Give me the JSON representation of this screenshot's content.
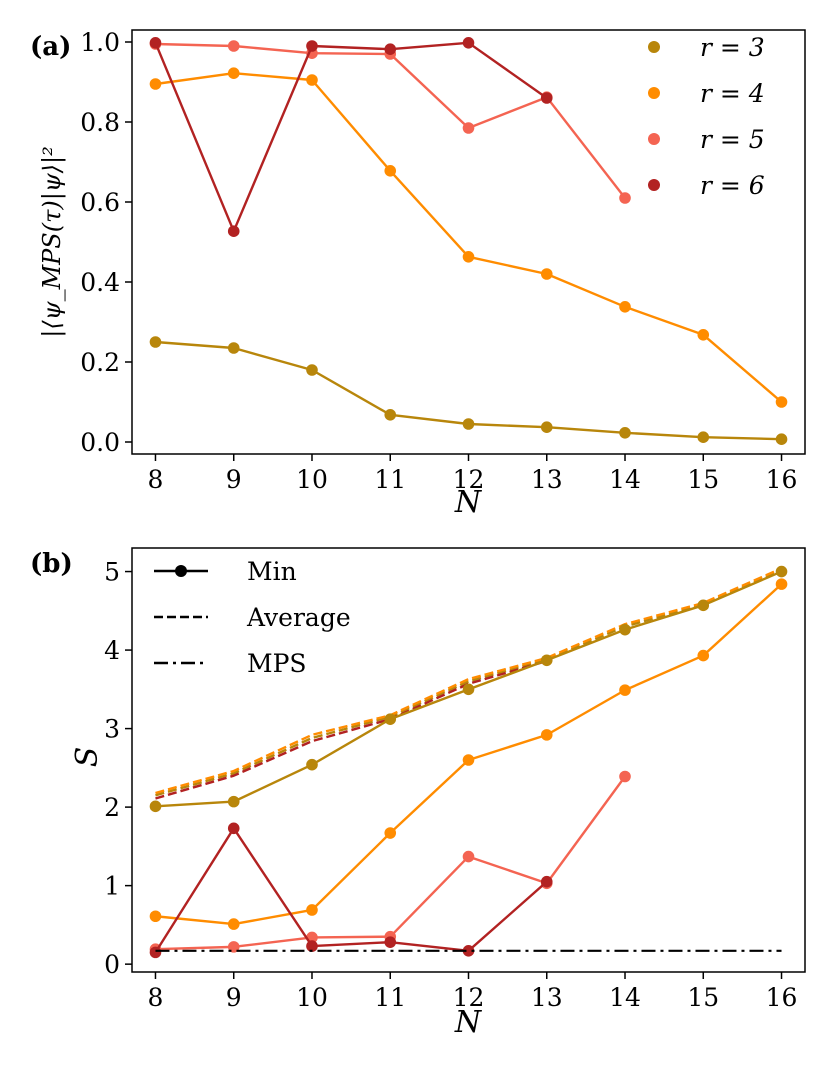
{
  "colors": {
    "r3": "#b8860b",
    "r4": "#ff8c00",
    "r5": "#f46452",
    "r6": "#b22222",
    "mps": "#000000"
  },
  "chart_data": [
    {
      "panel": "(a)",
      "type": "line",
      "xlabel": "N",
      "ylabel": "|⟨ψ_MPS(τ)|ψ⟩|²",
      "xlim": [
        7.7,
        16.3
      ],
      "ylim": [
        -0.03,
        1.03
      ],
      "x_ticks": [
        8,
        9,
        10,
        11,
        12,
        13,
        14,
        15,
        16
      ],
      "x_tick_labels": [
        "8",
        "9",
        "10",
        "11",
        "12",
        "13",
        "14",
        "15",
        "16"
      ],
      "y_ticks": [
        0.0,
        0.2,
        0.4,
        0.6,
        0.8,
        1.0
      ],
      "y_tick_labels": [
        "0.0",
        "0.2",
        "0.4",
        "0.6",
        "0.8",
        "1.0"
      ],
      "legend_position": "top-right",
      "legend": [
        {
          "label": "r = 3",
          "key": "r3"
        },
        {
          "label": "r = 4",
          "key": "r4"
        },
        {
          "label": "r = 5",
          "key": "r5"
        },
        {
          "label": "r = 6",
          "key": "r6"
        }
      ],
      "series": [
        {
          "name": "r = 3",
          "key": "r3",
          "style": "solid-marker",
          "x": [
            8,
            9,
            10,
            11,
            12,
            13,
            14,
            15,
            16
          ],
          "values": [
            0.25,
            0.235,
            0.18,
            0.068,
            0.045,
            0.037,
            0.023,
            0.012,
            0.007
          ]
        },
        {
          "name": "r = 4",
          "key": "r4",
          "style": "solid-marker",
          "x": [
            8,
            9,
            10,
            11,
            12,
            13,
            14,
            15,
            16
          ],
          "values": [
            0.895,
            0.922,
            0.905,
            0.678,
            0.463,
            0.42,
            0.338,
            0.268,
            0.1
          ]
        },
        {
          "name": "r = 5",
          "key": "r5",
          "style": "solid-marker",
          "x": [
            8,
            9,
            10,
            11,
            12,
            13,
            14
          ],
          "values": [
            0.995,
            0.99,
            0.972,
            0.97,
            0.785,
            0.862,
            0.61
          ]
        },
        {
          "name": "r = 6",
          "key": "r6",
          "style": "solid-marker",
          "x": [
            8,
            9,
            10,
            11,
            12,
            13
          ],
          "values": [
            0.998,
            0.527,
            0.99,
            0.982,
            0.998,
            0.86
          ]
        }
      ]
    },
    {
      "panel": "(b)",
      "type": "line",
      "xlabel": "N",
      "ylabel": "S",
      "xlim": [
        7.7,
        16.3
      ],
      "ylim": [
        -0.1,
        5.3
      ],
      "x_ticks": [
        8,
        9,
        10,
        11,
        12,
        13,
        14,
        15,
        16
      ],
      "x_tick_labels": [
        "8",
        "9",
        "10",
        "11",
        "12",
        "13",
        "14",
        "15",
        "16"
      ],
      "y_ticks": [
        0,
        1,
        2,
        3,
        4,
        5
      ],
      "y_tick_labels": [
        "0",
        "1",
        "2",
        "3",
        "4",
        "5"
      ],
      "legend_position": "top-left",
      "legend": [
        {
          "label": "Min",
          "style": "solid-marker"
        },
        {
          "label": "Average",
          "style": "dashed"
        },
        {
          "label": "MPS",
          "style": "dashdot"
        }
      ],
      "series": [
        {
          "name": "r = 3 Average",
          "key": "r3",
          "style": "dashed",
          "x": [
            8,
            9,
            10,
            11,
            12,
            13,
            14,
            15,
            16
          ],
          "values": [
            2.15,
            2.43,
            2.88,
            3.15,
            3.6,
            3.88,
            4.3,
            4.58,
            5.02
          ]
        },
        {
          "name": "r = 4 Average",
          "key": "r4",
          "style": "dashed",
          "x": [
            8,
            9,
            10,
            11,
            12,
            13,
            14,
            15,
            16
          ],
          "values": [
            2.18,
            2.46,
            2.92,
            3.17,
            3.63,
            3.9,
            4.33,
            4.6,
            5.04
          ]
        },
        {
          "name": "r = 6 Average",
          "key": "r6",
          "style": "dashed",
          "x": [
            8,
            9,
            10,
            11,
            12,
            13
          ],
          "values": [
            2.11,
            2.4,
            2.84,
            3.12,
            3.57,
            3.86
          ]
        },
        {
          "name": "r = 3 Min",
          "key": "r3",
          "style": "solid-marker",
          "x": [
            8,
            9,
            10,
            11,
            12,
            13,
            14,
            15,
            16
          ],
          "values": [
            2.01,
            2.07,
            2.54,
            3.12,
            3.5,
            3.87,
            4.26,
            4.57,
            5.0
          ]
        },
        {
          "name": "r = 4 Min",
          "key": "r4",
          "style": "solid-marker",
          "x": [
            8,
            9,
            10,
            11,
            12,
            13,
            14,
            15,
            16
          ],
          "values": [
            0.61,
            0.51,
            0.69,
            1.67,
            2.6,
            2.92,
            3.49,
            3.93,
            4.84
          ]
        },
        {
          "name": "r = 5 Min",
          "key": "r5",
          "style": "solid-marker",
          "x": [
            8,
            9,
            10,
            11,
            12,
            13,
            14
          ],
          "values": [
            0.19,
            0.22,
            0.34,
            0.35,
            1.37,
            1.03,
            2.39
          ]
        },
        {
          "name": "r = 6 Min",
          "key": "r6",
          "style": "solid-marker",
          "x": [
            8,
            9,
            10,
            11,
            12,
            13
          ],
          "values": [
            0.15,
            1.73,
            0.23,
            0.28,
            0.17,
            1.05
          ]
        },
        {
          "name": "MPS",
          "key": "mps",
          "style": "dashdot",
          "x": [
            8,
            16
          ],
          "values": [
            0.17,
            0.17
          ]
        }
      ]
    }
  ]
}
